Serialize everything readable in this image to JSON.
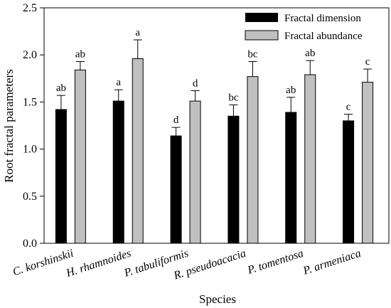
{
  "chart_data": {
    "type": "bar",
    "xlabel": "Species",
    "ylabel": "Root fractal parameters",
    "ylim": [
      0,
      2.5
    ],
    "yticks": [
      "0.0",
      "0.5",
      "1.0",
      "1.5",
      "2.0",
      "2.5"
    ],
    "categories": [
      "C. korshinskii",
      "H. rhamnoides",
      "P. tabuliformis",
      "R. pseudoacacia",
      "P. tomentosa",
      "P. armeniaca"
    ],
    "series": [
      {
        "name": "Fractal dimension",
        "color": "#000000",
        "values": [
          1.42,
          1.51,
          1.14,
          1.35,
          1.39,
          1.3
        ],
        "errors": [
          0.15,
          0.12,
          0.09,
          0.12,
          0.16,
          0.07
        ],
        "letters": [
          "ab",
          "a",
          "d",
          "bc",
          "ab",
          "c"
        ]
      },
      {
        "name": "Fractal abundance",
        "color": "#c0c0c0",
        "values": [
          1.84,
          1.96,
          1.51,
          1.77,
          1.79,
          1.71
        ],
        "errors": [
          0.09,
          0.2,
          0.11,
          0.16,
          0.15,
          0.14
        ],
        "letters": [
          "ab",
          "a",
          "d",
          "bc",
          "ab",
          "c"
        ]
      }
    ],
    "legend_position": "top-right"
  }
}
